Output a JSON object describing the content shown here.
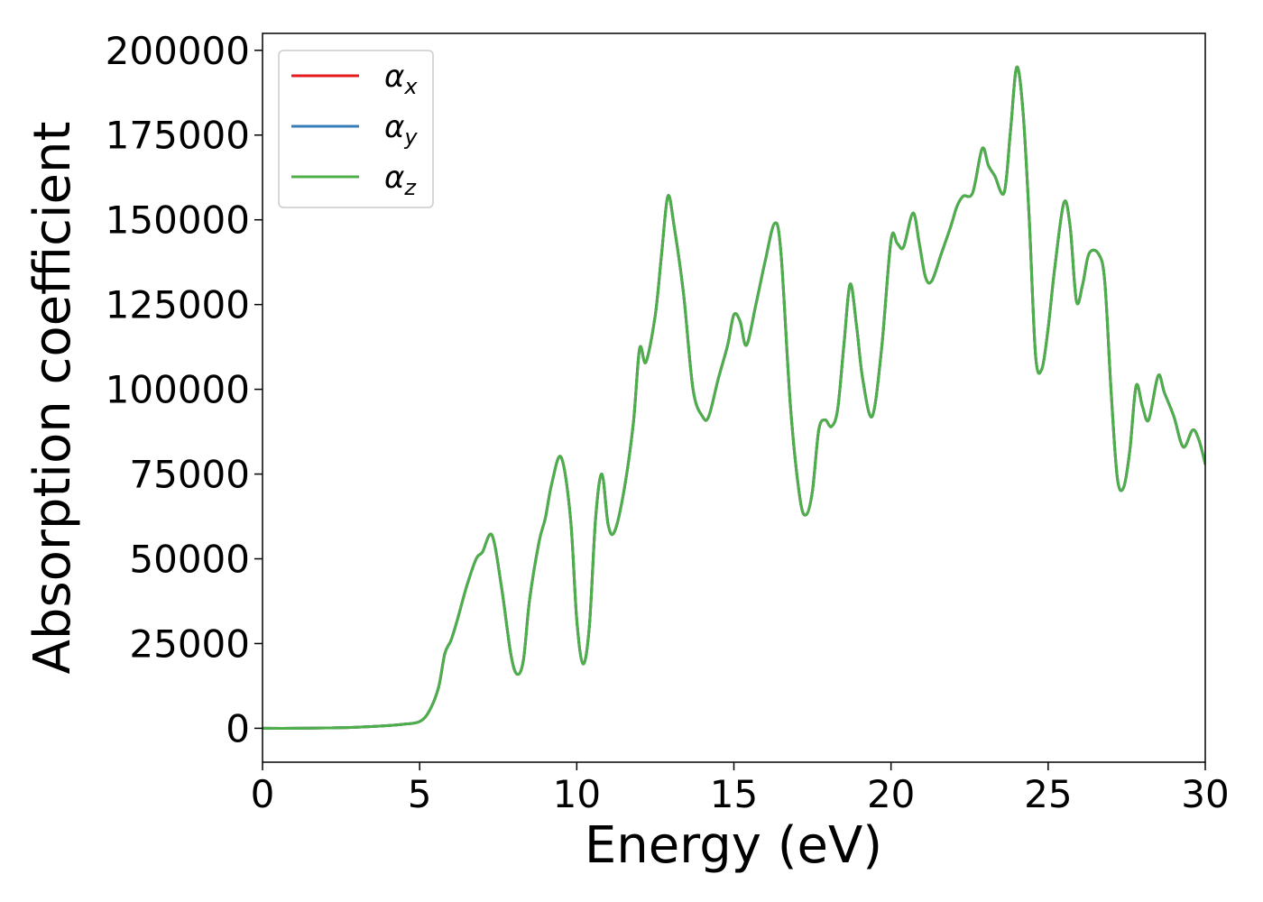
{
  "chart_data": {
    "type": "line",
    "xlabel": "Energy (eV)",
    "ylabel": "Absorption coefficient",
    "xlim": [
      0,
      30
    ],
    "ylim": [
      -10000,
      205000
    ],
    "xticks": [
      0,
      5,
      10,
      15,
      20,
      25,
      30
    ],
    "yticks": [
      0,
      25000,
      50000,
      75000,
      100000,
      125000,
      150000,
      175000,
      200000
    ],
    "grid": false,
    "legend_position": "top-left",
    "x": [
      0,
      1,
      2,
      3,
      4,
      4.5,
      5,
      5.3,
      5.6,
      5.8,
      6.0,
      6.2,
      6.5,
      6.8,
      7.0,
      7.3,
      7.6,
      7.9,
      8.1,
      8.3,
      8.5,
      8.8,
      9.0,
      9.2,
      9.5,
      9.8,
      10.0,
      10.2,
      10.4,
      10.6,
      10.8,
      11.0,
      11.2,
      11.5,
      11.8,
      12.0,
      12.2,
      12.5,
      12.7,
      12.9,
      13.1,
      13.4,
      13.7,
      14.0,
      14.2,
      14.5,
      14.8,
      15.0,
      15.2,
      15.4,
      15.7,
      16.0,
      16.3,
      16.5,
      16.8,
      17.1,
      17.3,
      17.5,
      17.7,
      17.9,
      18.1,
      18.3,
      18.5,
      18.7,
      18.9,
      19.1,
      19.4,
      19.7,
      20.0,
      20.2,
      20.4,
      20.7,
      20.9,
      21.1,
      21.3,
      21.6,
      21.9,
      22.1,
      22.3,
      22.6,
      22.9,
      23.1,
      23.3,
      23.6,
      23.8,
      24.0,
      24.2,
      24.4,
      24.6,
      24.8,
      25.0,
      25.2,
      25.5,
      25.7,
      25.9,
      26.1,
      26.3,
      26.6,
      26.8,
      27.0,
      27.2,
      27.4,
      27.6,
      27.8,
      28.0,
      28.2,
      28.5,
      28.7,
      29.0,
      29.3,
      29.6,
      29.8,
      30.0
    ],
    "series": [
      {
        "name": "α_x",
        "name_base": "α",
        "name_sub": "x",
        "color": "#e41a1c",
        "values": [
          0,
          0,
          100,
          300,
          800,
          1200,
          2000,
          5000,
          12000,
          22000,
          26000,
          32000,
          42000,
          50000,
          52000,
          57000,
          42000,
          22000,
          16000,
          20000,
          38000,
          55000,
          62000,
          72000,
          80000,
          62000,
          32000,
          19000,
          30000,
          62000,
          75000,
          60000,
          58000,
          70000,
          90000,
          112000,
          108000,
          122000,
          140000,
          157000,
          148000,
          128000,
          100000,
          92000,
          92000,
          103000,
          113000,
          122000,
          120000,
          113000,
          125000,
          138000,
          149000,
          140000,
          95000,
          68000,
          63000,
          70000,
          88000,
          91000,
          89000,
          94000,
          113000,
          131000,
          119000,
          103000,
          92000,
          112000,
          144000,
          143000,
          142000,
          152000,
          143000,
          133000,
          132000,
          140000,
          148000,
          154000,
          157000,
          158000,
          171000,
          166000,
          163000,
          158000,
          176000,
          195000,
          182000,
          150000,
          110000,
          106000,
          118000,
          135000,
          155000,
          148000,
          126000,
          131000,
          140000,
          140000,
          132000,
          100000,
          74000,
          71000,
          82000,
          101000,
          95000,
          91000,
          104000,
          99000,
          92000,
          83000,
          88000,
          85000,
          78000
        ]
      },
      {
        "name": "α_y",
        "name_base": "α",
        "name_sub": "y",
        "color": "#377eb8",
        "values": [
          0,
          0,
          100,
          300,
          800,
          1200,
          2000,
          5000,
          12000,
          22000,
          26000,
          32000,
          42000,
          50000,
          52000,
          57000,
          42000,
          22000,
          16000,
          20000,
          38000,
          55000,
          62000,
          72000,
          80000,
          62000,
          32000,
          19000,
          30000,
          62000,
          75000,
          60000,
          58000,
          70000,
          90000,
          112000,
          108000,
          122000,
          140000,
          157000,
          148000,
          128000,
          100000,
          92000,
          92000,
          103000,
          113000,
          122000,
          120000,
          113000,
          125000,
          138000,
          149000,
          140000,
          95000,
          68000,
          63000,
          70000,
          88000,
          91000,
          89000,
          94000,
          113000,
          131000,
          119000,
          103000,
          92000,
          112000,
          144000,
          143000,
          142000,
          152000,
          143000,
          133000,
          132000,
          140000,
          148000,
          154000,
          157000,
          158000,
          171000,
          166000,
          163000,
          158000,
          176000,
          195000,
          182000,
          150000,
          110000,
          106000,
          118000,
          135000,
          155000,
          148000,
          126000,
          131000,
          140000,
          140000,
          132000,
          100000,
          74000,
          71000,
          82000,
          101000,
          95000,
          91000,
          104000,
          99000,
          92000,
          83000,
          88000,
          85000,
          78000
        ]
      },
      {
        "name": "α_z",
        "name_base": "α",
        "name_sub": "z",
        "color": "#4daf4a",
        "values": [
          0,
          0,
          100,
          300,
          800,
          1200,
          2000,
          5000,
          12000,
          22000,
          26000,
          32000,
          42000,
          50000,
          52000,
          57000,
          42000,
          22000,
          16000,
          20000,
          38000,
          55000,
          62000,
          72000,
          80000,
          62000,
          32000,
          19000,
          30000,
          62000,
          75000,
          60000,
          58000,
          70000,
          90000,
          112000,
          108000,
          122000,
          140000,
          157000,
          148000,
          128000,
          100000,
          92000,
          92000,
          103000,
          113000,
          122000,
          120000,
          113000,
          125000,
          138000,
          149000,
          140000,
          95000,
          68000,
          63000,
          70000,
          88000,
          91000,
          89000,
          94000,
          113000,
          131000,
          119000,
          103000,
          92000,
          112000,
          144000,
          143000,
          142000,
          152000,
          143000,
          133000,
          132000,
          140000,
          148000,
          154000,
          157000,
          158000,
          171000,
          166000,
          163000,
          158000,
          176000,
          195000,
          182000,
          150000,
          110000,
          106000,
          118000,
          135000,
          155000,
          148000,
          126000,
          131000,
          140000,
          140000,
          132000,
          100000,
          74000,
          71000,
          82000,
          101000,
          95000,
          91000,
          104000,
          99000,
          92000,
          83000,
          88000,
          85000,
          78000
        ]
      }
    ]
  }
}
